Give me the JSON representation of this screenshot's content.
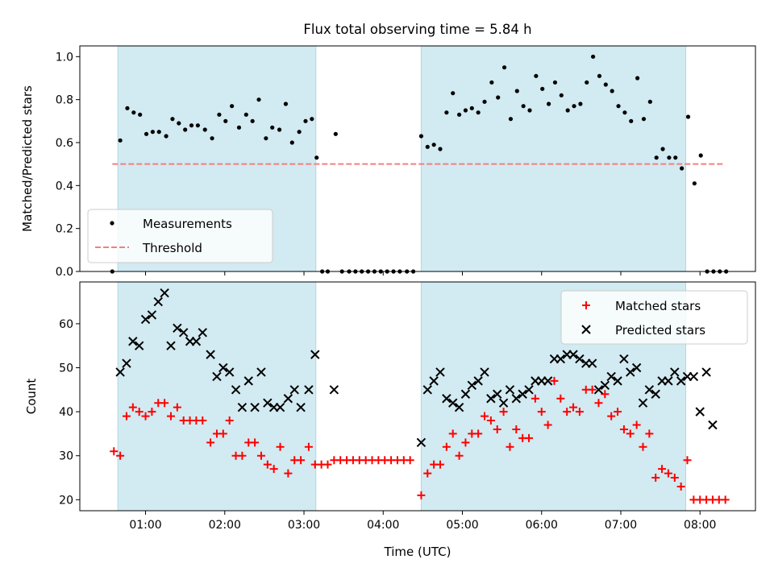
{
  "title": "Flux total observing time = 5.84 h",
  "colors": {
    "shade": "#add8e6",
    "threshold": "#f08080",
    "matched": "#ff0000",
    "predicted": "#000000",
    "measurements": "#000000"
  },
  "chart_data": [
    {
      "type": "scatter",
      "ylabel": "Matched/Predicted stars",
      "ylim": [
        0,
        1.05
      ],
      "xlim": [
        0.17,
        8.7
      ],
      "yticks": [
        "0.0",
        "0.2",
        "0.4",
        "0.6",
        "0.8",
        "1.0"
      ],
      "ytick_values": [
        0,
        0.2,
        0.4,
        0.6,
        0.8,
        1.0
      ],
      "shaded_intervals": [
        [
          0.65,
          3.15
        ],
        [
          4.48,
          7.82
        ]
      ],
      "legend": {
        "placement": "lower-left",
        "entries": [
          "Measurements",
          "Threshold"
        ]
      },
      "threshold": {
        "name": "Threshold",
        "value": 0.5,
        "x_range": [
          0.58,
          8.3
        ]
      },
      "series": [
        {
          "name": "Measurements",
          "marker": "dot",
          "x": [
            0.58,
            0.68,
            0.77,
            0.85,
            0.93,
            1.01,
            1.09,
            1.17,
            1.26,
            1.34,
            1.42,
            1.5,
            1.58,
            1.66,
            1.75,
            1.84,
            1.93,
            2.01,
            2.09,
            2.18,
            2.27,
            2.35,
            2.43,
            2.52,
            2.6,
            2.69,
            2.77,
            2.85,
            2.94,
            3.02,
            3.1,
            3.16,
            3.23,
            3.3,
            3.4,
            3.48,
            3.57,
            3.65,
            3.73,
            3.81,
            3.89,
            3.97,
            4.05,
            4.13,
            4.21,
            4.3,
            4.38,
            4.48,
            4.56,
            4.64,
            4.72,
            4.8,
            4.88,
            4.96,
            5.04,
            5.12,
            5.2,
            5.28,
            5.37,
            5.45,
            5.53,
            5.61,
            5.69,
            5.77,
            5.85,
            5.93,
            6.01,
            6.09,
            6.17,
            6.25,
            6.33,
            6.41,
            6.49,
            6.57,
            6.65,
            6.73,
            6.81,
            6.89,
            6.97,
            7.05,
            7.13,
            7.21,
            7.29,
            7.37,
            7.45,
            7.53,
            7.61,
            7.69,
            7.77,
            7.85,
            7.93,
            8.01,
            8.09,
            8.17,
            8.25,
            8.33
          ],
          "y": [
            0.0,
            0.61,
            0.76,
            0.74,
            0.73,
            0.64,
            0.65,
            0.65,
            0.63,
            0.71,
            0.69,
            0.66,
            0.68,
            0.68,
            0.66,
            0.62,
            0.73,
            0.7,
            0.77,
            0.67,
            0.73,
            0.7,
            0.8,
            0.62,
            0.67,
            0.66,
            0.78,
            0.6,
            0.65,
            0.7,
            0.71,
            0.53,
            0.0,
            0.0,
            0.64,
            0.0,
            0.0,
            0.0,
            0.0,
            0.0,
            0.0,
            0.0,
            0.0,
            0.0,
            0.0,
            0.0,
            0.0,
            0.63,
            0.58,
            0.59,
            0.57,
            0.74,
            0.83,
            0.73,
            0.75,
            0.76,
            0.74,
            0.79,
            0.88,
            0.81,
            0.95,
            0.71,
            0.84,
            0.77,
            0.75,
            0.91,
            0.85,
            0.78,
            0.88,
            0.82,
            0.75,
            0.77,
            0.78,
            0.88,
            1.0,
            0.91,
            0.87,
            0.84,
            0.77,
            0.74,
            0.7,
            0.9,
            0.71,
            0.79,
            0.53,
            0.57,
            0.53,
            0.53,
            0.48,
            0.72,
            0.41,
            0.54,
            0.0,
            0.0,
            0.0,
            0.0
          ]
        }
      ]
    },
    {
      "type": "scatter",
      "ylabel": "Count",
      "xlabel": "Time (UTC)",
      "ylim": [
        17.5,
        69.5
      ],
      "xlim": [
        0.17,
        8.7
      ],
      "yticks": [
        "20",
        "30",
        "40",
        "50",
        "60"
      ],
      "ytick_values": [
        20,
        30,
        40,
        50,
        60
      ],
      "xticks": [
        "01:00",
        "02:00",
        "03:00",
        "04:00",
        "05:00",
        "06:00",
        "07:00",
        "08:00"
      ],
      "xtick_values": [
        1,
        2,
        3,
        4,
        5,
        6,
        7,
        8
      ],
      "shaded_intervals": [
        [
          0.65,
          3.15
        ],
        [
          4.48,
          7.82
        ]
      ],
      "legend": {
        "placement": "upper-right",
        "entries": [
          "Matched stars",
          "Predicted stars"
        ]
      },
      "series": [
        {
          "name": "Matched stars",
          "marker": "plus",
          "x": [
            0.6,
            0.68,
            0.76,
            0.84,
            0.92,
            1.0,
            1.08,
            1.16,
            1.24,
            1.32,
            1.4,
            1.48,
            1.56,
            1.64,
            1.72,
            1.82,
            1.9,
            1.98,
            2.06,
            2.14,
            2.22,
            2.3,
            2.38,
            2.46,
            2.54,
            2.62,
            2.7,
            2.8,
            2.88,
            2.96,
            3.06,
            3.14,
            3.22,
            3.3,
            3.38,
            3.46,
            3.54,
            3.62,
            3.7,
            3.78,
            3.86,
            3.94,
            4.02,
            4.1,
            4.18,
            4.26,
            4.34,
            4.48,
            4.56,
            4.64,
            4.72,
            4.8,
            4.88,
            4.96,
            5.04,
            5.12,
            5.2,
            5.28,
            5.36,
            5.44,
            5.52,
            5.6,
            5.68,
            5.76,
            5.84,
            5.92,
            6.0,
            6.08,
            6.16,
            6.24,
            6.32,
            6.4,
            6.48,
            6.56,
            6.64,
            6.72,
            6.8,
            6.88,
            6.96,
            7.04,
            7.12,
            7.2,
            7.28,
            7.36,
            7.44,
            7.52,
            7.6,
            7.68,
            7.76,
            7.84,
            7.92,
            8.0,
            8.08,
            8.16,
            8.24,
            8.32
          ],
          "y": [
            31,
            30,
            39,
            41,
            40,
            39,
            40,
            42,
            42,
            39,
            41,
            38,
            38,
            38,
            38,
            33,
            35,
            35,
            38,
            30,
            30,
            33,
            33,
            30,
            28,
            27,
            32,
            26,
            29,
            29,
            32,
            28,
            28,
            28,
            29,
            29,
            29,
            29,
            29,
            29,
            29,
            29,
            29,
            29,
            29,
            29,
            29,
            21,
            26,
            28,
            28,
            32,
            35,
            30,
            33,
            35,
            35,
            39,
            38,
            36,
            40,
            32,
            36,
            34,
            34,
            43,
            40,
            37,
            47,
            43,
            40,
            41,
            40,
            45,
            45,
            42,
            44,
            39,
            40,
            36,
            35,
            37,
            32,
            35,
            25,
            27,
            26,
            25,
            23,
            29,
            20,
            20,
            20,
            20,
            20,
            20
          ]
        },
        {
          "name": "Predicted stars",
          "marker": "x",
          "x": [
            0.68,
            0.76,
            0.84,
            0.92,
            1.0,
            1.08,
            1.16,
            1.24,
            1.32,
            1.4,
            1.48,
            1.56,
            1.64,
            1.72,
            1.82,
            1.9,
            1.98,
            2.06,
            2.14,
            2.22,
            2.3,
            2.38,
            2.46,
            2.54,
            2.62,
            2.7,
            2.8,
            2.88,
            2.96,
            3.06,
            3.14,
            3.38,
            4.48,
            4.56,
            4.64,
            4.72,
            4.8,
            4.88,
            4.96,
            5.04,
            5.12,
            5.2,
            5.28,
            5.36,
            5.44,
            5.52,
            5.6,
            5.68,
            5.76,
            5.84,
            5.92,
            6.0,
            6.08,
            6.16,
            6.24,
            6.32,
            6.4,
            6.48,
            6.56,
            6.64,
            6.72,
            6.8,
            6.88,
            6.96,
            7.04,
            7.12,
            7.2,
            7.28,
            7.36,
            7.44,
            7.52,
            7.6,
            7.68,
            7.76,
            7.84,
            7.92,
            8.0,
            8.08,
            8.16
          ],
          "y": [
            49,
            51,
            56,
            55,
            61,
            62,
            65,
            67,
            55,
            59,
            58,
            56,
            56,
            58,
            53,
            48,
            50,
            49,
            45,
            41,
            47,
            41,
            49,
            42,
            41,
            41,
            43,
            45,
            41,
            45,
            53,
            45,
            33,
            45,
            47,
            49,
            43,
            42,
            41,
            44,
            46,
            47,
            49,
            43,
            44,
            42,
            45,
            43,
            44,
            45,
            47,
            47,
            47,
            52,
            52,
            53,
            53,
            52,
            51,
            51,
            45,
            46,
            48,
            47,
            52,
            49,
            50,
            42,
            45,
            44,
            47,
            47,
            49,
            47,
            48,
            48,
            40,
            49,
            37
          ]
        }
      ]
    }
  ]
}
